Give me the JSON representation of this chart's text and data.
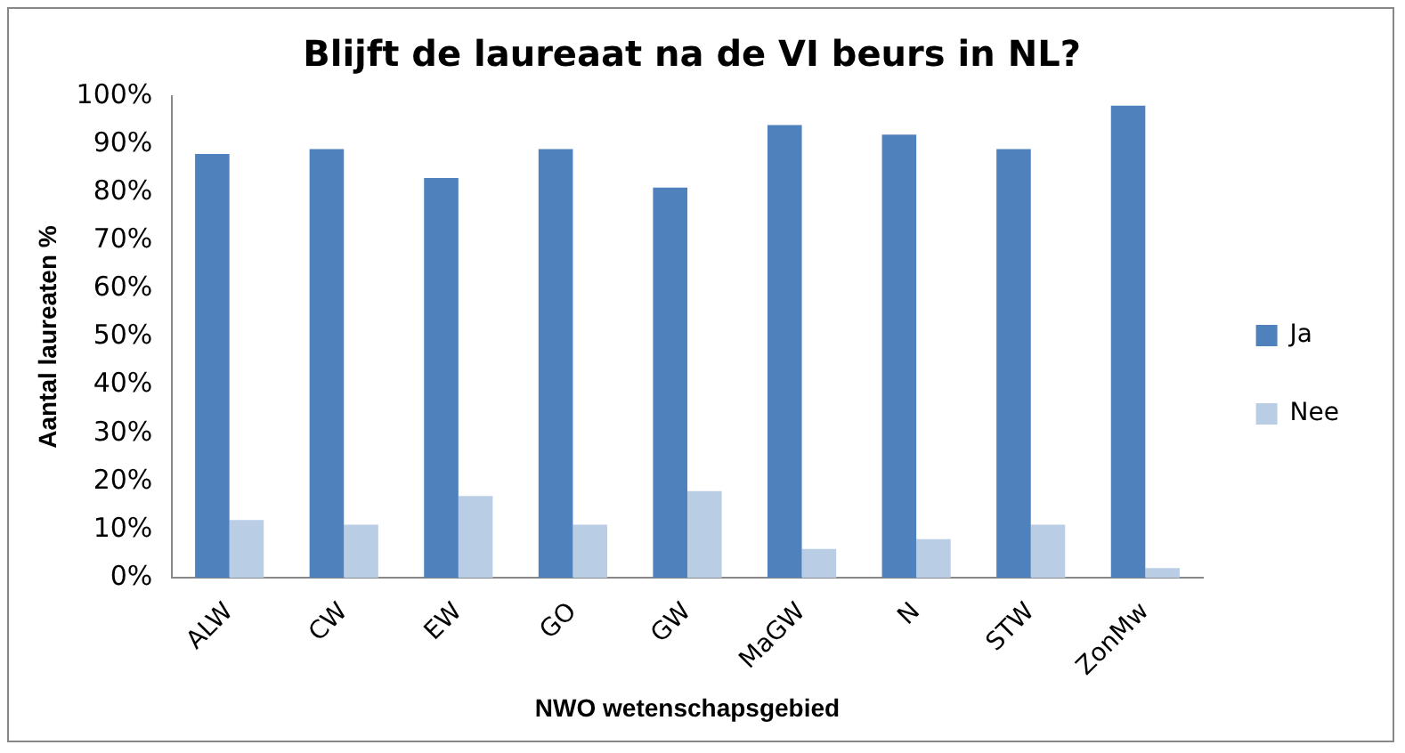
{
  "chart_data": {
    "type": "bar",
    "title": "Blijft de laureaat na de VI beurs in NL?",
    "xlabel": "NWO wetenschapsgebied",
    "ylabel": "Aantal laureaten %",
    "categories": [
      "ALW",
      "CW",
      "EW",
      "GO",
      "GW",
      "MaGW",
      "N",
      "STW",
      "ZonMw"
    ],
    "series": [
      {
        "name": "Ja",
        "color": "#4f81bd",
        "values": [
          88,
          89,
          83,
          89,
          81,
          94,
          92,
          89,
          98
        ]
      },
      {
        "name": "Nee",
        "color": "#b9cde5",
        "values": [
          12,
          11,
          17,
          11,
          18,
          6,
          8,
          11,
          2
        ]
      }
    ],
    "ylim": [
      0,
      100
    ],
    "yticks": [
      {
        "value": 0,
        "label": "0%"
      },
      {
        "value": 10,
        "label": "10%"
      },
      {
        "value": 20,
        "label": "20%"
      },
      {
        "value": 30,
        "label": "30%"
      },
      {
        "value": 40,
        "label": "40%"
      },
      {
        "value": 50,
        "label": "50%"
      },
      {
        "value": 60,
        "label": "60%"
      },
      {
        "value": 70,
        "label": "70%"
      },
      {
        "value": 80,
        "label": "80%"
      },
      {
        "value": 90,
        "label": "90%"
      },
      {
        "value": 100,
        "label": "100%"
      }
    ],
    "grid": false,
    "legend": "right"
  }
}
